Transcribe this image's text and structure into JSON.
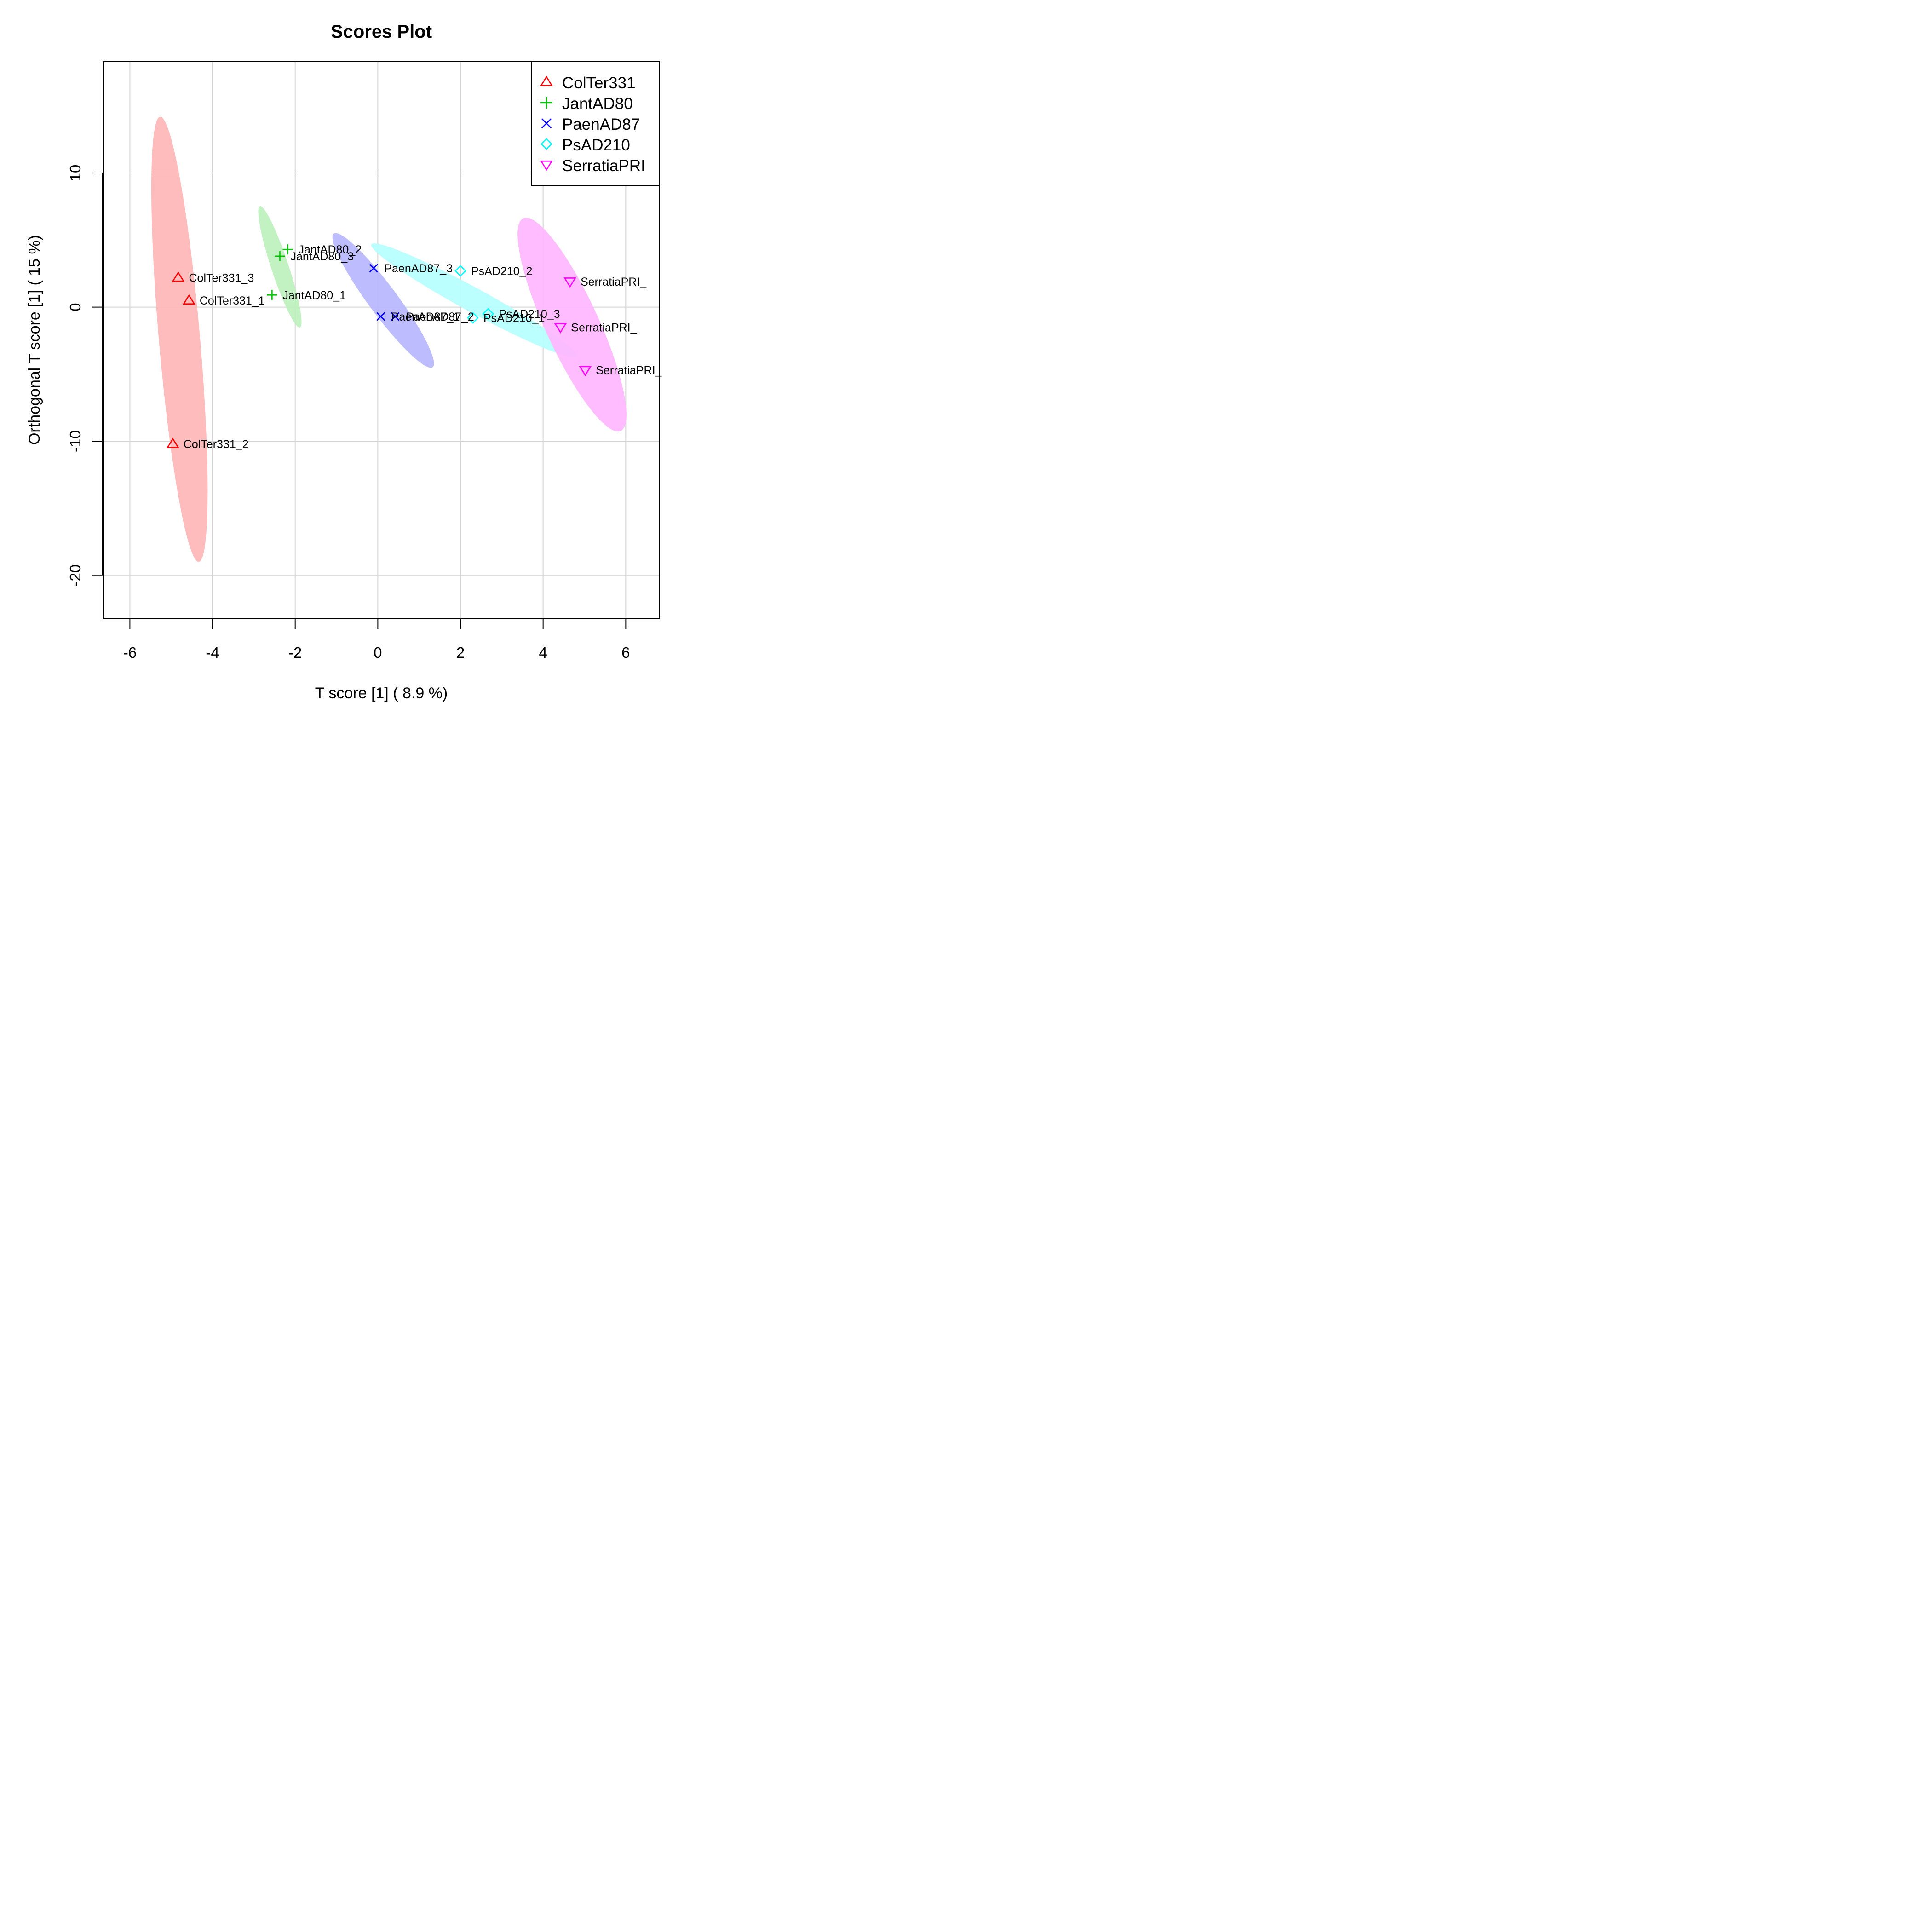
{
  "chart_data": {
    "type": "scatter",
    "title": "Scores Plot",
    "xlabel": "T score [1] ( 8.9 %)",
    "ylabel": "Orthogonal T score [1] ( 15 %)",
    "xlim": [
      -6.65,
      6.82
    ],
    "ylim": [
      -23.2,
      18.3
    ],
    "xticks": [
      -6,
      -4,
      -2,
      0,
      2,
      4,
      6
    ],
    "yticks": [
      -20,
      -10,
      0,
      10
    ],
    "grid": true,
    "legend_position": "top-right",
    "series": [
      {
        "name": "ColTer331",
        "color": "#ff0000",
        "fill": "#ffb6b6",
        "marker": "triangle-up",
        "points": [
          {
            "label": "ColTer331_1",
            "x": -4.57,
            "y": 0.5
          },
          {
            "label": "ColTer331_2",
            "x": -4.96,
            "y": -10.2
          },
          {
            "label": "ColTer331_3",
            "x": -4.83,
            "y": 2.2
          }
        ],
        "ellipse": {
          "cx": -4.8,
          "cy": -2.4,
          "rx": 16.6,
          "ry": 0.5,
          "angle_deg": -88.4
        }
      },
      {
        "name": "JantAD80",
        "color": "#00c800",
        "fill": "#bdf0bd",
        "marker": "plus",
        "points": [
          {
            "label": "JantAD80_1",
            "x": -2.56,
            "y": 0.9
          },
          {
            "label": "JantAD80_2",
            "x": -2.18,
            "y": 4.3
          },
          {
            "label": "JantAD80_3",
            "x": -2.37,
            "y": 3.8
          }
        ],
        "ellipse": {
          "cx": -2.37,
          "cy": 3.0,
          "rx": 4.55,
          "ry": 0.22,
          "angle_deg": -84.0
        }
      },
      {
        "name": "PaenAD87",
        "color": "#0000ff",
        "fill": "#b6b6ff",
        "marker": "cross",
        "points": [
          {
            "label": "PaenAD87_1",
            "x": 0.07,
            "y": -0.7
          },
          {
            "label": "PaenAD87_2",
            "x": 0.42,
            "y": -0.7
          },
          {
            "label": "PaenAD87_3",
            "x": -0.1,
            "y": 2.9
          }
        ],
        "ellipse": {
          "cx": 0.13,
          "cy": 0.5,
          "rx": 5.15,
          "ry": 0.42,
          "angle_deg": -77.0
        }
      },
      {
        "name": "PsAD210",
        "color": "#00ffff",
        "fill": "#b6ffff",
        "marker": "diamond",
        "points": [
          {
            "label": "PsAD210_1",
            "x": 2.3,
            "y": -0.8
          },
          {
            "label": "PsAD210_2",
            "x": 2.0,
            "y": 2.7
          },
          {
            "label": "PsAD210_3",
            "x": 2.67,
            "y": -0.5
          }
        ],
        "ellipse": {
          "cx": 2.33,
          "cy": 0.5,
          "rx": 4.9,
          "ry": 0.52,
          "angle_deg": -60.0
        }
      },
      {
        "name": "SerratiaPRI",
        "color": "#ff00ff",
        "fill": "#ffb6ff",
        "marker": "triangle-down",
        "points": [
          {
            "label": "SerratiaPRI_",
            "x": 4.65,
            "y": 1.9
          },
          {
            "label": "SerratiaPRI_",
            "x": 4.42,
            "y": -1.5
          },
          {
            "label": "SerratiaPRI_",
            "x": 5.02,
            "y": -4.7
          }
        ],
        "ellipse": {
          "cx": 4.7,
          "cy": -1.3,
          "rx": 8.05,
          "ry": 0.7,
          "angle_deg": -82.0
        }
      }
    ]
  }
}
